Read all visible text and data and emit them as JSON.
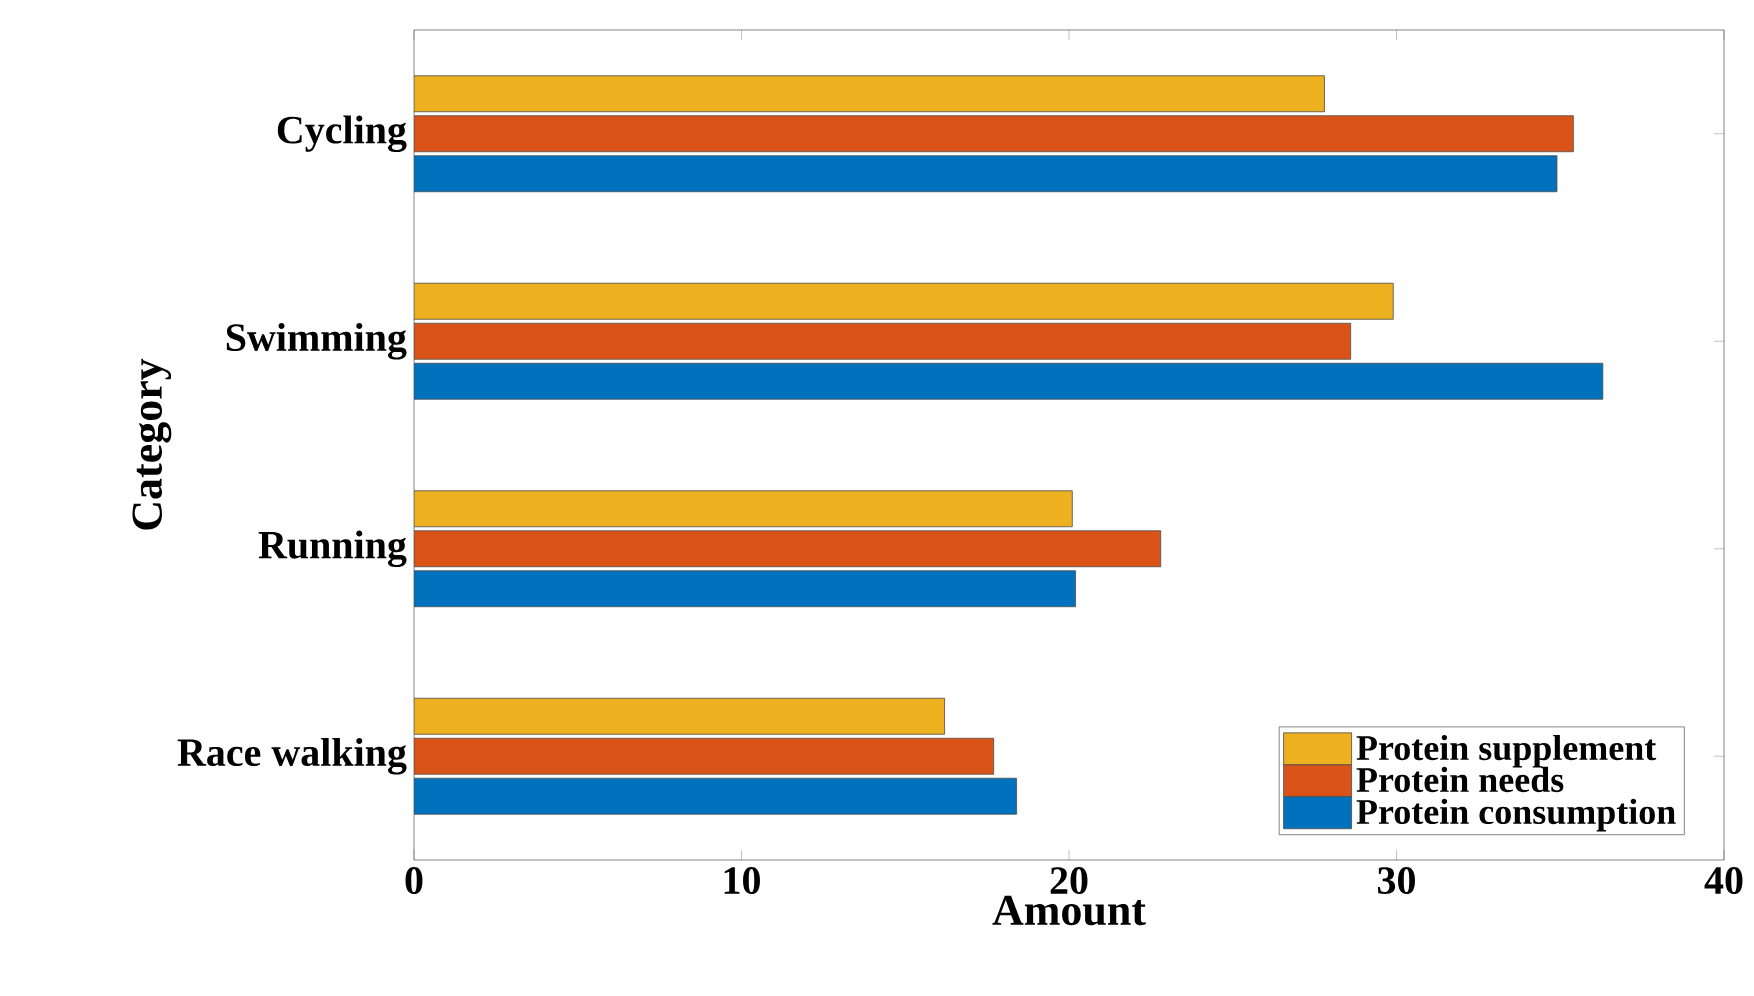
{
  "chart_data": {
    "type": "bar",
    "orientation": "horizontal",
    "xlabel": "Amount",
    "ylabel": "Category",
    "categories": [
      "Cycling",
      "Swimming",
      "Running",
      "Race walking"
    ],
    "series": [
      {
        "name": "Protein consumption",
        "color": "#0072bd",
        "values": [
          34.9,
          36.3,
          20.2,
          18.4
        ]
      },
      {
        "name": "Protein needs",
        "color": "#d95319",
        "values": [
          35.4,
          28.6,
          22.8,
          17.7
        ]
      },
      {
        "name": "Protein supplement",
        "color": "#edb120",
        "values": [
          27.8,
          29.9,
          20.1,
          16.2
        ]
      }
    ],
    "xlim": [
      0,
      40
    ],
    "xticks": [
      0,
      10,
      20,
      30,
      40
    ],
    "grid": false,
    "legend": "bottom right"
  }
}
